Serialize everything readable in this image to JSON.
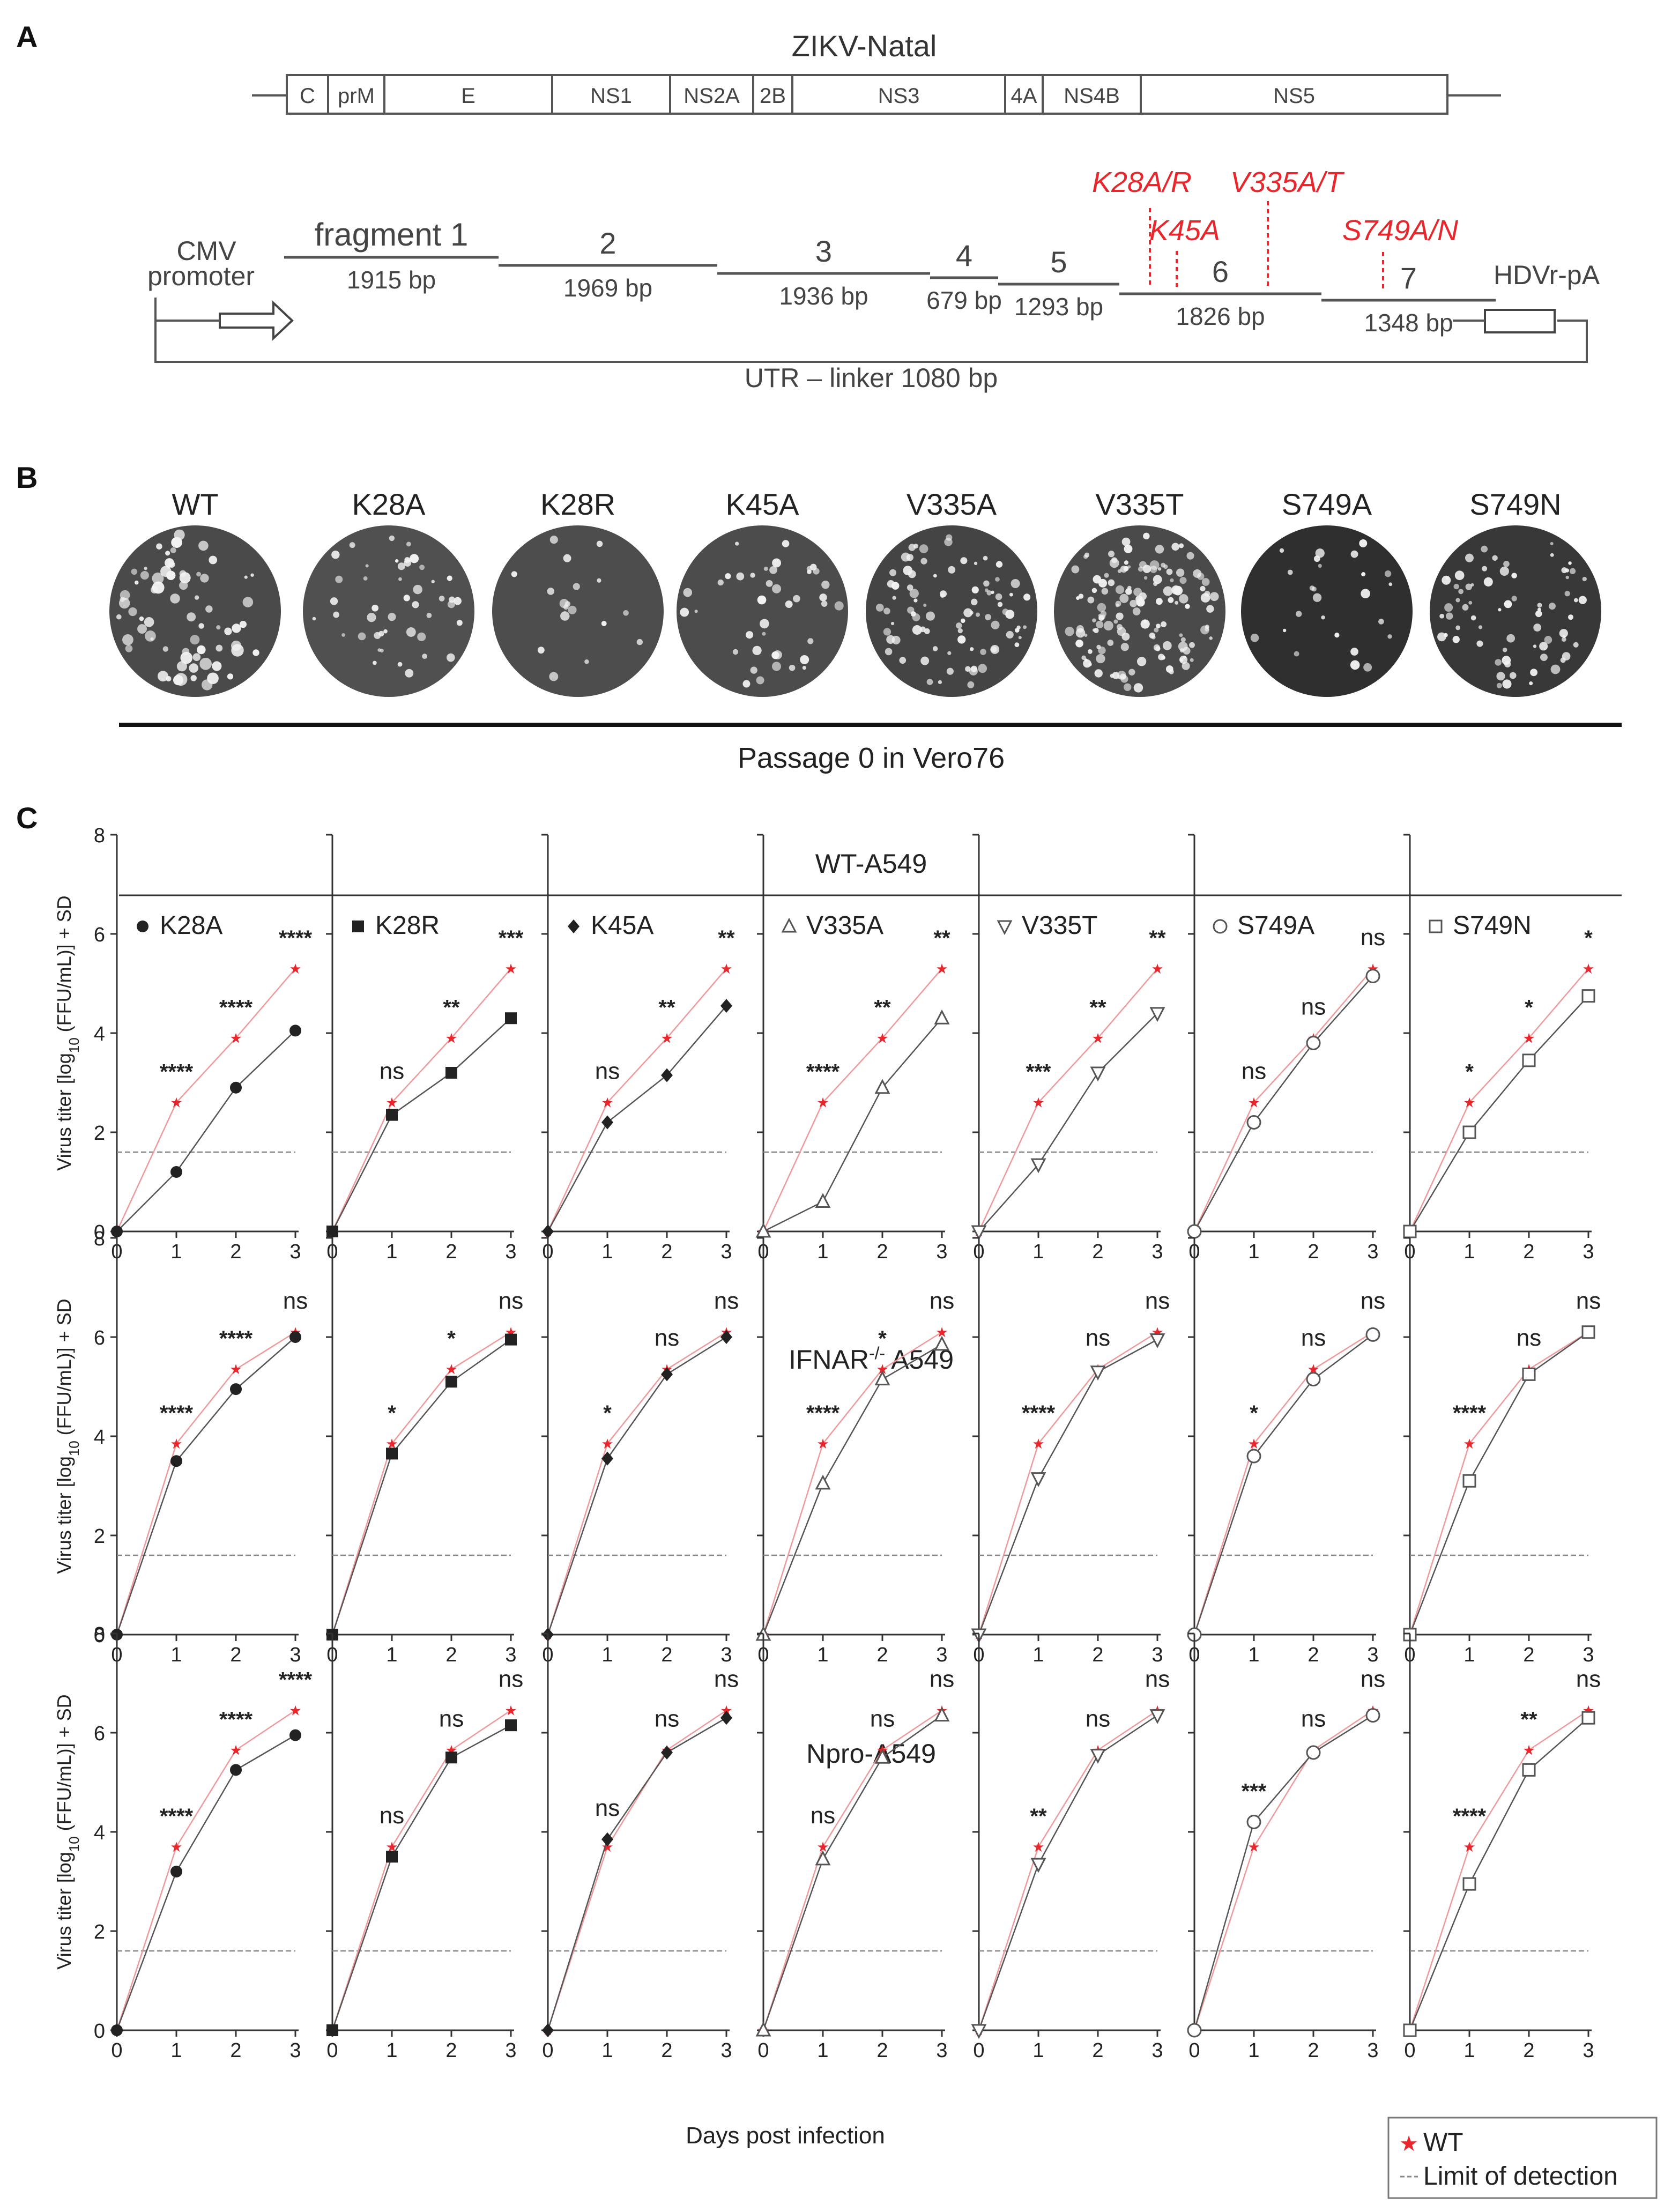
{
  "panel_a": {
    "label": "A",
    "genome_title": "ZIKV-Natal",
    "genes": [
      "C",
      "prM",
      "E",
      "NS1",
      "NS2A",
      "2B",
      "NS3",
      "4A",
      "NS4B",
      "NS5"
    ],
    "fragments": [
      {
        "name": "fragment 1",
        "size": "1915 bp"
      },
      {
        "name": "2",
        "size": "1969 bp"
      },
      {
        "name": "3",
        "size": "1936 bp"
      },
      {
        "name": "4",
        "size": "679 bp"
      },
      {
        "name": "5",
        "size": "1293 bp"
      },
      {
        "name": "6",
        "size": "1826 bp"
      },
      {
        "name": "7",
        "size": "1348 bp"
      }
    ],
    "promoter": [
      "CMV",
      "promoter"
    ],
    "terminator": "HDVr-pA",
    "linker": "UTR – linker  1080 bp",
    "mutations": [
      "K28A/R",
      "K45A",
      "V335A/T",
      "S749A/N"
    ]
  },
  "panel_b": {
    "label": "B",
    "wells": [
      "WT",
      "K28A",
      "K28R",
      "K45A",
      "V335A",
      "V335T",
      "S749A",
      "S749N"
    ],
    "caption": "Passage 0 in Vero76"
  },
  "panel_c": {
    "label": "C",
    "ylabel_main": "Virus titer [log",
    "ylabel_sub": "10",
    "ylabel_rest": " (FFU/mL)] + SD",
    "xlabel": "Days post infection",
    "legend": {
      "wt": "WT",
      "lod": "Limit of detection"
    },
    "colors": {
      "wt": "#e8262b",
      "mutant": "#222222",
      "lod": "#888888"
    }
  },
  "chart_data": [
    {
      "type": "line",
      "title": "WT-A549",
      "x": [
        0,
        1,
        2,
        3
      ],
      "ylim": [
        0,
        8
      ],
      "limit_of_detection": 1.6,
      "wt": [
        0,
        2.6,
        3.9,
        5.3
      ],
      "series": [
        {
          "name": "K28A",
          "marker": "circle-filled",
          "values": [
            0,
            1.2,
            2.9,
            4.05
          ],
          "sig": [
            "****",
            "****",
            "****"
          ]
        },
        {
          "name": "K28R",
          "marker": "square-filled",
          "values": [
            0,
            2.35,
            3.2,
            4.3
          ],
          "sig": [
            "ns",
            "**",
            "***"
          ]
        },
        {
          "name": "K45A",
          "marker": "diamond-filled",
          "values": [
            0,
            2.2,
            3.15,
            4.55
          ],
          "sig": [
            "ns",
            "**",
            "**"
          ]
        },
        {
          "name": "V335A",
          "marker": "triangle-up-open",
          "values": [
            0,
            0.6,
            2.9,
            4.3
          ],
          "sig": [
            "****",
            "**",
            "**"
          ]
        },
        {
          "name": "V335T",
          "marker": "triangle-down-open",
          "values": [
            0,
            1.35,
            3.2,
            4.4
          ],
          "sig": [
            "***",
            "**",
            "**"
          ]
        },
        {
          "name": "S749A",
          "marker": "circle-open",
          "values": [
            0,
            2.2,
            3.8,
            5.15
          ],
          "sig": [
            "ns",
            "ns",
            "ns"
          ]
        },
        {
          "name": "S749N",
          "marker": "square-open",
          "values": [
            0,
            2.0,
            3.45,
            4.75
          ],
          "sig": [
            "*",
            "*",
            "*"
          ]
        }
      ]
    },
    {
      "type": "line",
      "title_main": "IFNAR",
      "title_sup": "-/-",
      "title_rest": " A549",
      "x": [
        0,
        1,
        2,
        3
      ],
      "ylim": [
        0,
        8
      ],
      "limit_of_detection": 1.6,
      "wt": [
        0,
        3.85,
        5.35,
        6.1
      ],
      "series": [
        {
          "name": "K28A",
          "marker": "circle-filled",
          "values": [
            0,
            3.5,
            4.95,
            6.0
          ],
          "sig": [
            "****",
            "****",
            "ns"
          ]
        },
        {
          "name": "K28R",
          "marker": "square-filled",
          "values": [
            0,
            3.65,
            5.1,
            5.95
          ],
          "sig": [
            "*",
            "*",
            "ns"
          ]
        },
        {
          "name": "K45A",
          "marker": "diamond-filled",
          "values": [
            0,
            3.55,
            5.25,
            6.0
          ],
          "sig": [
            "*",
            "ns",
            "ns"
          ]
        },
        {
          "name": "V335A",
          "marker": "triangle-up-open",
          "values": [
            0,
            3.05,
            5.15,
            5.85
          ],
          "sig": [
            "****",
            "*",
            "ns"
          ]
        },
        {
          "name": "V335T",
          "marker": "triangle-down-open",
          "values": [
            0,
            3.15,
            5.3,
            5.95
          ],
          "sig": [
            "****",
            "ns",
            "ns"
          ]
        },
        {
          "name": "S749A",
          "marker": "circle-open",
          "values": [
            0,
            3.6,
            5.15,
            6.05
          ],
          "sig": [
            "*",
            "ns",
            "ns"
          ]
        },
        {
          "name": "S749N",
          "marker": "square-open",
          "values": [
            0,
            3.1,
            5.25,
            6.1
          ],
          "sig": [
            "****",
            "ns",
            "ns"
          ]
        }
      ]
    },
    {
      "type": "line",
      "title": "Npro-A549",
      "x": [
        0,
        1,
        2,
        3
      ],
      "ylim": [
        0,
        8
      ],
      "limit_of_detection": 1.6,
      "wt": [
        0,
        3.7,
        5.65,
        6.45
      ],
      "series": [
        {
          "name": "K28A",
          "marker": "circle-filled",
          "values": [
            0,
            3.2,
            5.25,
            5.95
          ],
          "sig": [
            "****",
            "****",
            "****"
          ]
        },
        {
          "name": "K28R",
          "marker": "square-filled",
          "values": [
            0,
            3.5,
            5.5,
            6.15
          ],
          "sig": [
            "ns",
            "ns",
            "ns"
          ]
        },
        {
          "name": "K45A",
          "marker": "diamond-filled",
          "values": [
            0,
            3.85,
            5.6,
            6.3
          ],
          "sig": [
            "ns",
            "ns",
            "ns"
          ]
        },
        {
          "name": "V335A",
          "marker": "triangle-up-open",
          "values": [
            0,
            3.45,
            5.5,
            6.35
          ],
          "sig": [
            "ns",
            "ns",
            "ns"
          ]
        },
        {
          "name": "V335T",
          "marker": "triangle-down-open",
          "values": [
            0,
            3.35,
            5.55,
            6.35
          ],
          "sig": [
            "**",
            "ns",
            "ns"
          ]
        },
        {
          "name": "S749A",
          "marker": "circle-open",
          "values": [
            0,
            4.2,
            5.6,
            6.35
          ],
          "sig": [
            "***",
            "ns",
            "ns"
          ]
        },
        {
          "name": "S749N",
          "marker": "square-open",
          "values": [
            0,
            2.95,
            5.25,
            6.3
          ],
          "sig": [
            "****",
            "**",
            "ns"
          ]
        }
      ]
    }
  ]
}
